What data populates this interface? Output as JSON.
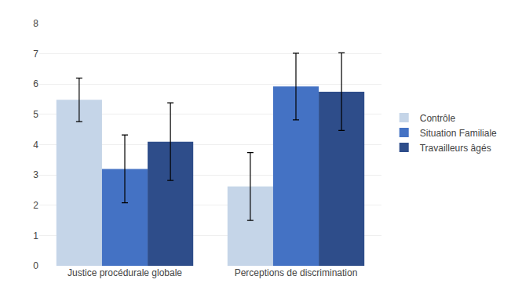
{
  "chart_data": {
    "type": "bar",
    "categories": [
      "Justice procédurale globale",
      "Perceptions de discrimination"
    ],
    "series": [
      {
        "name": "Contrôle",
        "color": "#c5d5e8",
        "values": [
          5.48,
          2.62
        ],
        "errors": [
          0.72,
          1.12
        ]
      },
      {
        "name": "Situation Familiale",
        "color": "#4472c4",
        "values": [
          3.2,
          5.92
        ],
        "errors": [
          1.12,
          1.1
        ]
      },
      {
        "name": "Travailleurs âgés",
        "color": "#2e4d8a",
        "values": [
          4.1,
          5.75
        ],
        "errors": [
          1.28,
          1.28
        ]
      }
    ],
    "ylim": [
      0,
      8
    ],
    "yticks": [
      0,
      1,
      2,
      3,
      4,
      5,
      6,
      7,
      8
    ],
    "grid": true,
    "legend": "right"
  }
}
